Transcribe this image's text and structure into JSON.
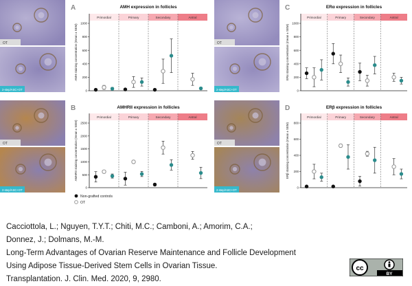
{
  "panels": [
    {
      "letter": "A",
      "title": "AMH expression in follicles",
      "ylabel": "AMH staining concentration (mean ± SEM)",
      "ylim": [
        0,
        1000
      ],
      "ticks": [
        0,
        200,
        400,
        600,
        800,
        1000
      ],
      "photo_top_label": "OT",
      "photo_bottom_label": "2-step/ASC+OT"
    },
    {
      "letter": "B",
      "title": "AMHRII expression in follicles",
      "ylabel": "AMHRII staining concentration (mean ± SEM)",
      "ylim": [
        0,
        2500
      ],
      "ticks": [
        0,
        500,
        1000,
        1500,
        2000,
        2500
      ],
      "photo_top_label": "OT",
      "photo_bottom_label": "2-step/ASC+OT"
    },
    {
      "letter": "C",
      "title": "ERα expression in follicles",
      "ylabel": "ERα staining concentration (mean ± SEM)",
      "ylim": [
        0,
        1000
      ],
      "ticks": [
        0,
        200,
        400,
        600,
        800,
        1000
      ],
      "photo_top_label": "OT",
      "photo_bottom_label": "2-step/ASC+OT"
    },
    {
      "letter": "D",
      "title": "ERβ expression in follicles",
      "ylabel": "ERβ staining concentration (mean ± SEM)",
      "ylim": [
        0,
        800
      ],
      "ticks": [
        0,
        200,
        400,
        600,
        800
      ],
      "photo_top_label": "OT",
      "photo_bottom_label": "2-step/ASC+OT"
    }
  ],
  "stages": [
    "Primordial",
    "Primary",
    "Secondary",
    "Antral"
  ],
  "stage_colors": [
    "#fde8ea",
    "#fbd3d8",
    "#f6a8b0",
    "#ee7d88"
  ],
  "legend": [
    {
      "label": "Non-grafted controls",
      "color": "#111111",
      "style": "filled"
    },
    {
      "label": "OT",
      "color": "#9a9a9a",
      "style": "open"
    },
    {
      "label": "2-step/ASC+OT",
      "color": "#2b8c8c",
      "style": "filled"
    }
  ],
  "chart_data": [
    {
      "type": "scatter",
      "panel": "A",
      "title": "AMH expression in follicles",
      "ylabel": "AMH staining concentration (mean ± SEM)",
      "ylim": [
        0,
        1000
      ],
      "categories": [
        "Primordial",
        "Primary",
        "Secondary",
        "Antral"
      ],
      "series": [
        {
          "name": "Non-grafted controls",
          "values": [
            15,
            20,
            15,
            null
          ],
          "err": [
            5,
            8,
            5,
            null
          ]
        },
        {
          "name": "OT",
          "values": [
            50,
            130,
            290,
            170
          ],
          "err": [
            30,
            80,
            180,
            90
          ]
        },
        {
          "name": "2-step/ASC+OT",
          "values": [
            30,
            130,
            520,
            35
          ],
          "err": [
            20,
            60,
            250,
            15
          ]
        }
      ]
    },
    {
      "type": "scatter",
      "panel": "B",
      "title": "AMHRII expression in follicles",
      "ylabel": "AMHRII staining concentration (mean ± SEM)",
      "ylim": [
        0,
        2500
      ],
      "categories": [
        "Primordial",
        "Primary",
        "Secondary",
        "Antral"
      ],
      "series": [
        {
          "name": "Non-grafted controls",
          "values": [
            420,
            350,
            120,
            null
          ],
          "err": [
            200,
            250,
            50,
            null
          ]
        },
        {
          "name": "OT",
          "values": [
            620,
            1000,
            1550,
            1250
          ],
          "err": [
            60,
            60,
            250,
            150
          ]
        },
        {
          "name": "2-step/ASC+OT",
          "values": [
            450,
            530,
            880,
            570
          ],
          "err": [
            80,
            100,
            200,
            220
          ]
        }
      ]
    },
    {
      "type": "scatter",
      "panel": "C",
      "title": "ERα expression in follicles",
      "ylabel": "ERα staining concentration (mean ± SEM)",
      "ylim": [
        0,
        1000
      ],
      "categories": [
        "Primordial",
        "Primary",
        "Secondary",
        "Antral"
      ],
      "series": [
        {
          "name": "Non-grafted controls",
          "values": [
            260,
            550,
            280,
            null
          ],
          "err": [
            80,
            150,
            130,
            null
          ]
        },
        {
          "name": "OT",
          "values": [
            200,
            400,
            150,
            200
          ],
          "err": [
            140,
            130,
            80,
            60
          ]
        },
        {
          "name": "2-step/ASC+OT",
          "values": [
            310,
            130,
            380,
            150
          ],
          "err": [
            150,
            60,
            130,
            50
          ]
        }
      ]
    },
    {
      "type": "scatter",
      "panel": "D",
      "title": "ERβ expression in follicles",
      "ylabel": "ERβ staining concentration (mean ± SEM)",
      "ylim": [
        0,
        800
      ],
      "categories": [
        "Primordial",
        "Primary",
        "Secondary",
        "Antral"
      ],
      "series": [
        {
          "name": "Non-grafted controls",
          "values": [
            15,
            15,
            80,
            null
          ],
          "err": [
            5,
            5,
            60,
            null
          ]
        },
        {
          "name": "OT",
          "values": [
            200,
            520,
            420,
            260
          ],
          "err": [
            90,
            20,
            30,
            100
          ]
        },
        {
          "name": "2-step/ASC+OT",
          "values": [
            130,
            380,
            340,
            170
          ],
          "err": [
            50,
            150,
            160,
            60
          ]
        }
      ]
    }
  ],
  "citation": {
    "line1": "Cacciottola, L.; Nguyen, T.Y.T.; Chiti, M.C.; Camboni, A.; Amorim, C.A.;",
    "line2": "Donnez, J.; Dolmans, M.-M.",
    "line3": "Long-Term Advantages of Ovarian Reserve Maintenance and Follicle Development",
    "line4": "Using Adipose Tissue-Derived Stem Cells in Ovarian Tissue.",
    "line5": "Transplantation. J. Clin. Med. 2020, 9, 2980."
  },
  "license": {
    "cc": "cc",
    "by": "BY"
  }
}
